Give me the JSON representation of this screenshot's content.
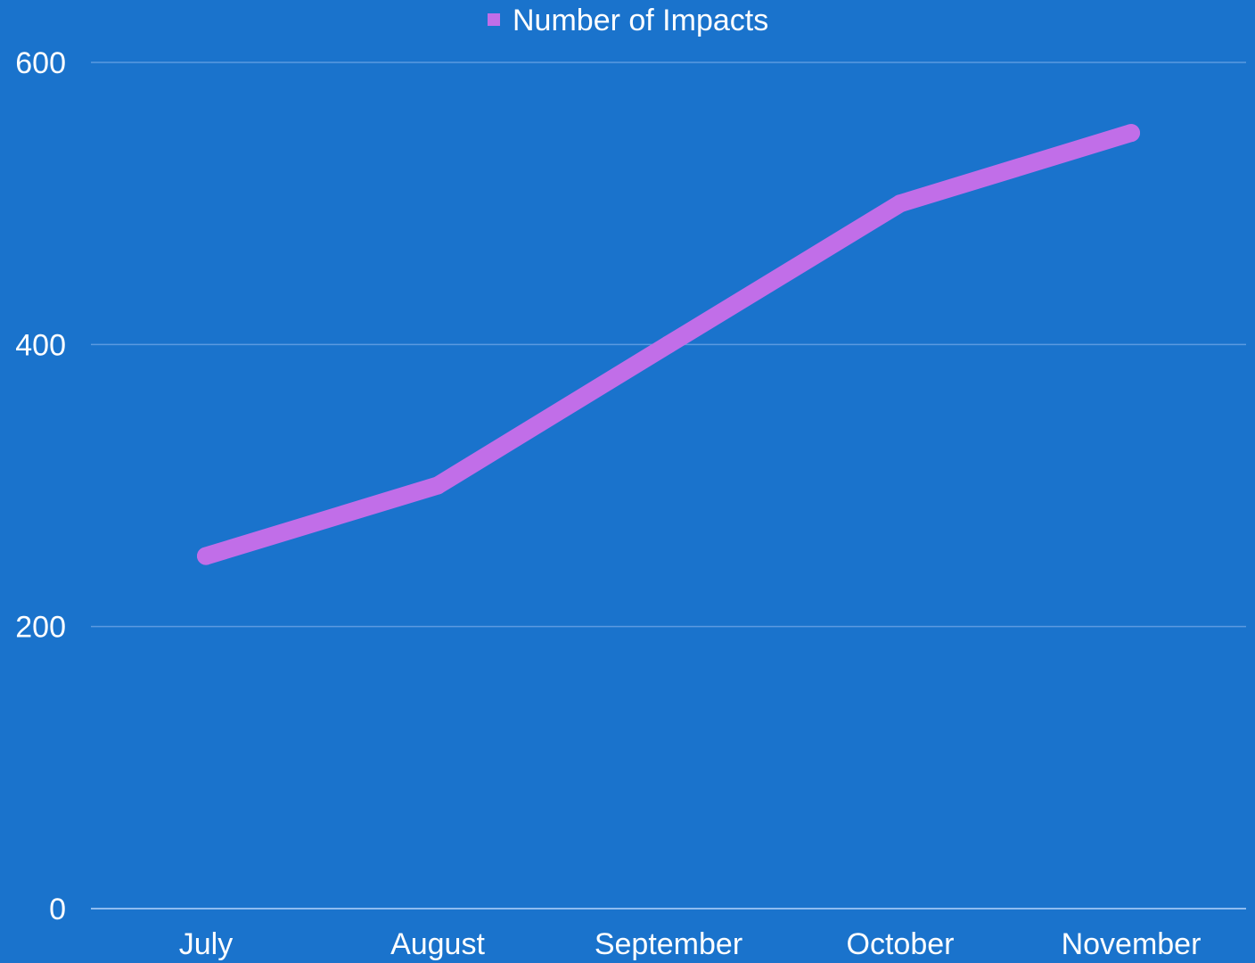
{
  "colors": {
    "background": "#1a73cc",
    "series": "#c16ee8",
    "gridline": "#5b9ae0",
    "text": "#ffffff"
  },
  "chart_data": {
    "type": "line",
    "title": "",
    "xlabel": "",
    "ylabel": "",
    "categories": [
      "July",
      "August",
      "September",
      "October",
      "November"
    ],
    "series": [
      {
        "name": "Number of Impacts",
        "values": [
          250,
          300,
          400,
          500,
          550
        ]
      }
    ],
    "ylim": [
      0,
      600
    ],
    "yticks": [
      0,
      200,
      400,
      600
    ],
    "grid": true,
    "legend": "top-center"
  }
}
